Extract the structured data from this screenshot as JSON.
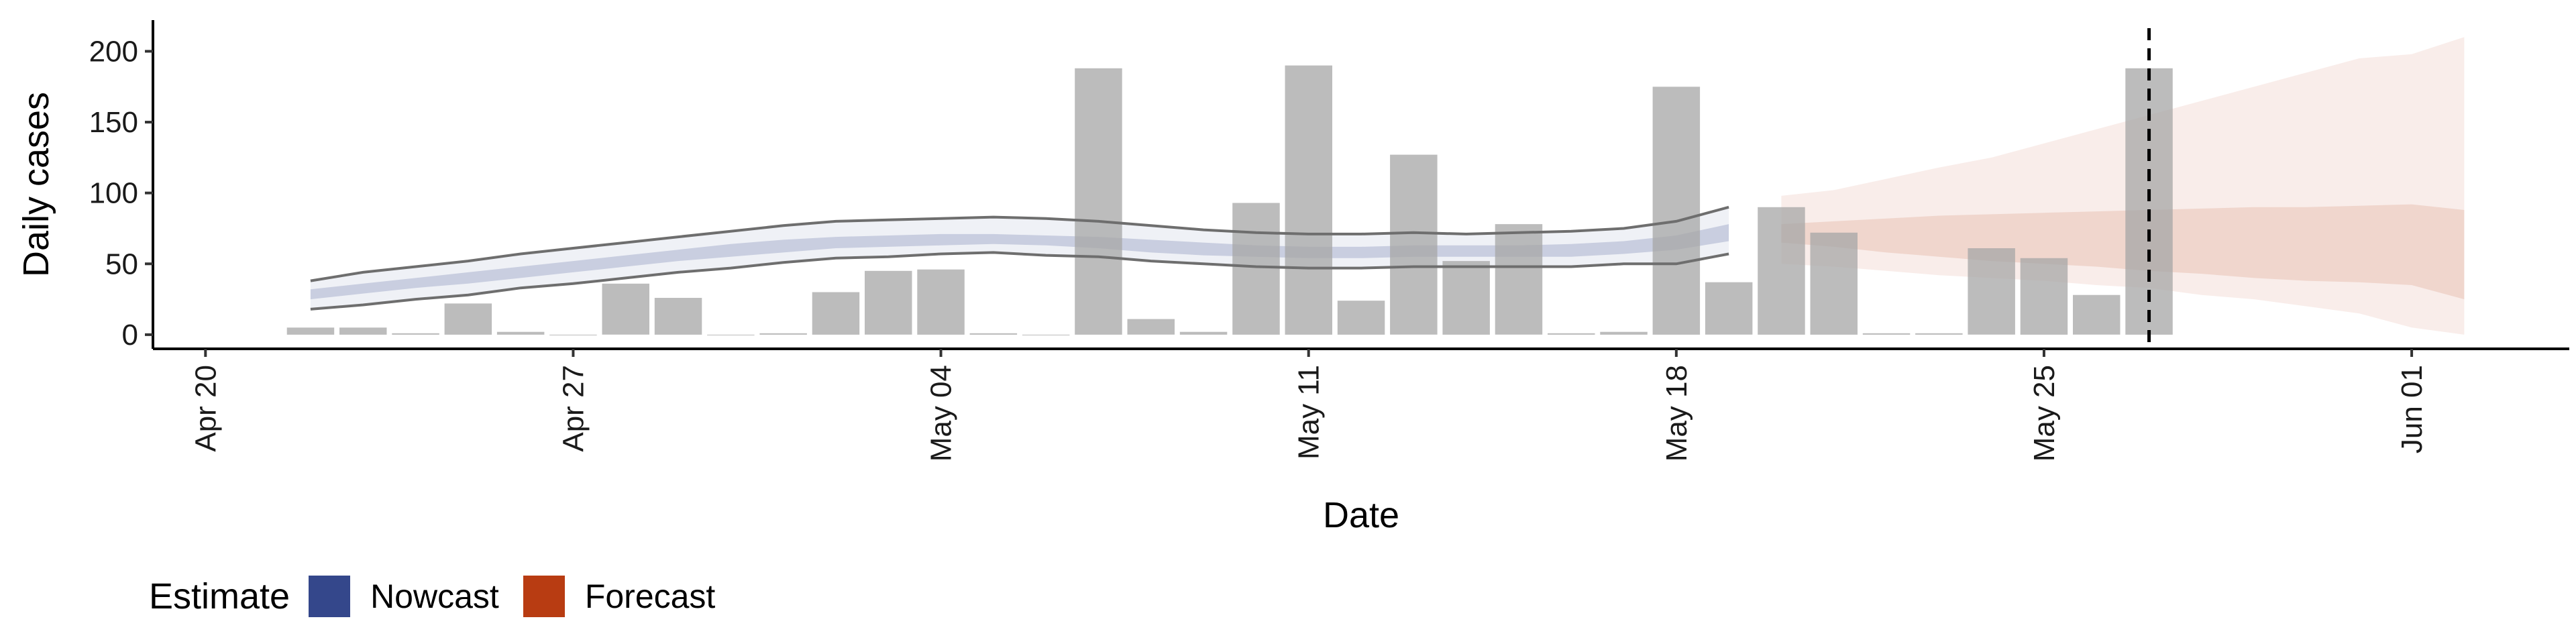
{
  "chart_data": {
    "type": "bar",
    "xlabel": "Date",
    "ylabel": "Daily cases",
    "x_ticks": [
      "Apr 20",
      "Apr 27",
      "May 04",
      "May 11",
      "May 18",
      "May 25",
      "Jun 01"
    ],
    "x_tick_dates": [
      "2020-04-20",
      "2020-04-27",
      "2020-05-04",
      "2020-05-11",
      "2020-05-18",
      "2020-05-25",
      "2020-06-01"
    ],
    "y_ticks": [
      0,
      50,
      100,
      150,
      200
    ],
    "xlim": [
      "2020-04-19",
      "2020-06-04"
    ],
    "ylim": [
      -10,
      222
    ],
    "grid": false,
    "legend_position": "bottom-left",
    "estimate_date": "2020-05-27",
    "reported_cases": {
      "dates": [
        "2020-04-22",
        "2020-04-23",
        "2020-04-24",
        "2020-04-25",
        "2020-04-26",
        "2020-04-27",
        "2020-04-28",
        "2020-04-29",
        "2020-04-30",
        "2020-05-01",
        "2020-05-02",
        "2020-05-03",
        "2020-05-04",
        "2020-05-05",
        "2020-05-06",
        "2020-05-07",
        "2020-05-08",
        "2020-05-09",
        "2020-05-10",
        "2020-05-11",
        "2020-05-12",
        "2020-05-13",
        "2020-05-14",
        "2020-05-15",
        "2020-05-16",
        "2020-05-17",
        "2020-05-18",
        "2020-05-19",
        "2020-05-20",
        "2020-05-21",
        "2020-05-22",
        "2020-05-23",
        "2020-05-24",
        "2020-05-25",
        "2020-05-26",
        "2020-05-27"
      ],
      "values": [
        5,
        5,
        1,
        22,
        2,
        0,
        36,
        26,
        0,
        1,
        30,
        45,
        46,
        1,
        0,
        188,
        11,
        2,
        93,
        190,
        24,
        127,
        52,
        78,
        1,
        2,
        175,
        37,
        90,
        72,
        1,
        1,
        61,
        54,
        28,
        188
      ]
    },
    "series": [
      {
        "name": "Nowcast",
        "color": "#34478b",
        "dates": [
          "2020-04-22",
          "2020-04-23",
          "2020-04-24",
          "2020-04-25",
          "2020-04-26",
          "2020-04-27",
          "2020-04-28",
          "2020-04-29",
          "2020-04-30",
          "2020-05-01",
          "2020-05-02",
          "2020-05-03",
          "2020-05-04",
          "2020-05-05",
          "2020-05-06",
          "2020-05-07",
          "2020-05-08",
          "2020-05-09",
          "2020-05-10",
          "2020-05-11",
          "2020-05-12",
          "2020-05-13",
          "2020-05-14",
          "2020-05-15",
          "2020-05-16",
          "2020-05-17",
          "2020-05-18",
          "2020-05-19"
        ],
        "lower_90": [
          18,
          21,
          25,
          28,
          33,
          36,
          40,
          44,
          47,
          51,
          54,
          55,
          57,
          58,
          56,
          55,
          52,
          50,
          48,
          47,
          47,
          48,
          48,
          48,
          48,
          50,
          50,
          57
        ],
        "upper_90": [
          38,
          44,
          48,
          52,
          57,
          61,
          65,
          69,
          73,
          77,
          80,
          81,
          82,
          83,
          82,
          80,
          77,
          74,
          72,
          71,
          71,
          72,
          71,
          72,
          73,
          75,
          80,
          90
        ],
        "lower_50": [
          25,
          29,
          33,
          36,
          40,
          44,
          48,
          52,
          55,
          58,
          61,
          62,
          63,
          64,
          63,
          61,
          58,
          56,
          55,
          54,
          54,
          55,
          55,
          55,
          55,
          57,
          60,
          66
        ],
        "upper_50": [
          32,
          36,
          40,
          44,
          48,
          52,
          56,
          60,
          64,
          67,
          69,
          70,
          71,
          71,
          70,
          69,
          67,
          65,
          63,
          62,
          62,
          63,
          63,
          63,
          64,
          66,
          70,
          78
        ],
        "median": [
          28,
          32,
          36,
          40,
          44,
          48,
          52,
          56,
          59,
          62,
          65,
          66,
          67,
          68,
          66,
          65,
          63,
          61,
          59,
          58,
          58,
          59,
          59,
          59,
          60,
          61,
          65,
          72
        ]
      },
      {
        "name": "Forecast",
        "color": "#b83c12",
        "dates": [
          "2020-05-20",
          "2020-05-21",
          "2020-05-22",
          "2020-05-23",
          "2020-05-24",
          "2020-05-25",
          "2020-05-26",
          "2020-05-27",
          "2020-05-28",
          "2020-05-29",
          "2020-05-30",
          "2020-05-31",
          "2020-06-01",
          "2020-06-02"
        ],
        "lower_90": [
          50,
          48,
          45,
          42,
          40,
          38,
          35,
          33,
          28,
          25,
          20,
          15,
          5,
          0
        ],
        "upper_90": [
          98,
          102,
          110,
          118,
          125,
          135,
          145,
          155,
          165,
          175,
          185,
          195,
          198,
          210
        ],
        "lower_50": [
          65,
          62,
          58,
          55,
          52,
          50,
          48,
          45,
          43,
          40,
          38,
          37,
          35,
          25
        ],
        "upper_50": [
          78,
          80,
          82,
          84,
          85,
          86,
          87,
          88,
          89,
          90,
          90,
          91,
          92,
          88
        ]
      }
    ]
  },
  "legend": {
    "title": "Estimate",
    "items": [
      {
        "label": "Nowcast",
        "color": "#34478b"
      },
      {
        "label": "Forecast",
        "color": "#b83c12"
      }
    ]
  }
}
